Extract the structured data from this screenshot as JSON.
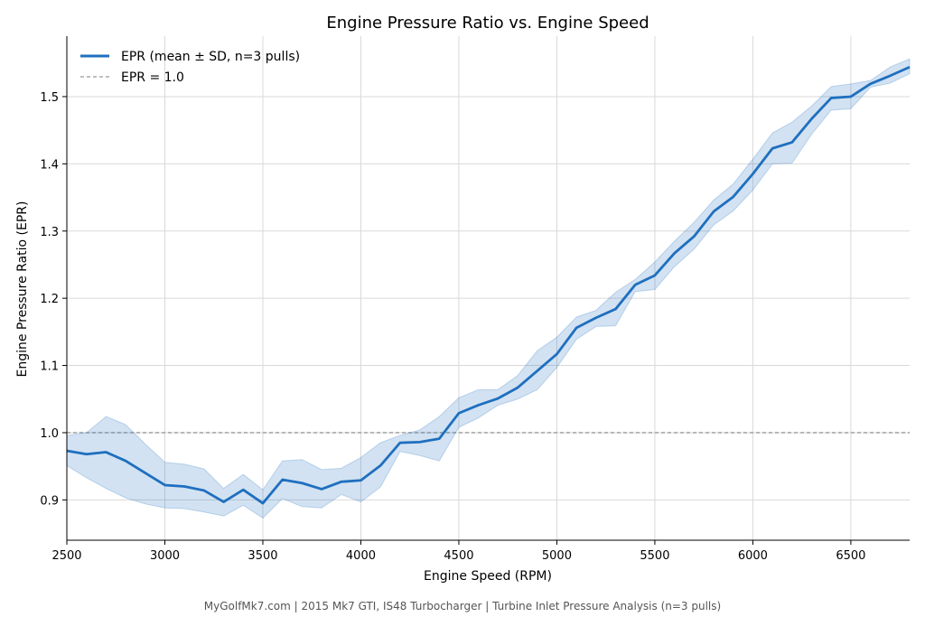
{
  "chart_data": {
    "type": "line",
    "title": "Engine Pressure Ratio vs. Engine Speed",
    "xlabel": "Engine Speed (RPM)",
    "ylabel": "Engine Pressure Ratio (EPR)",
    "xlim": [
      2500,
      6800
    ],
    "ylim": [
      0.84,
      1.59
    ],
    "xticks": [
      2500,
      3000,
      3500,
      4000,
      4500,
      5000,
      5500,
      6000,
      6500
    ],
    "yticks": [
      0.9,
      1.0,
      1.1,
      1.2,
      1.3,
      1.4,
      1.5
    ],
    "grid": true,
    "legend_position": "top-left",
    "series": [
      {
        "name": "EPR (mean ± SD, n=3 pulls)",
        "color": "#1f6fbf",
        "band_color": "#1f6fbf",
        "x": [
          2500,
          2600,
          2700,
          2800,
          2900,
          3000,
          3100,
          3200,
          3300,
          3400,
          3500,
          3600,
          3700,
          3800,
          3900,
          4000,
          4100,
          4200,
          4300,
          4400,
          4500,
          4600,
          4700,
          4800,
          4900,
          5000,
          5100,
          5200,
          5300,
          5400,
          5500,
          5600,
          5700,
          5800,
          5900,
          6000,
          6100,
          6200,
          6300,
          6400,
          6500,
          6600,
          6700,
          6800
        ],
        "y": [
          0.973,
          0.968,
          0.971,
          0.958,
          0.94,
          0.922,
          0.92,
          0.914,
          0.897,
          0.915,
          0.895,
          0.93,
          0.925,
          0.916,
          0.927,
          0.929,
          0.951,
          0.985,
          0.986,
          0.991,
          1.029,
          1.041,
          1.051,
          1.067,
          1.092,
          1.117,
          1.156,
          1.171,
          1.184,
          1.22,
          1.234,
          1.267,
          1.292,
          1.329,
          1.351,
          1.385,
          1.423,
          1.432,
          1.467,
          1.498,
          1.5,
          1.519,
          1.531,
          1.544
        ],
        "lower": [
          0.951,
          0.933,
          0.917,
          0.903,
          0.894,
          0.888,
          0.887,
          0.882,
          0.876,
          0.892,
          0.873,
          0.902,
          0.89,
          0.888,
          0.908,
          0.897,
          0.919,
          0.972,
          0.966,
          0.958,
          1.008,
          1.022,
          1.041,
          1.05,
          1.064,
          1.097,
          1.139,
          1.158,
          1.159,
          1.21,
          1.213,
          1.247,
          1.273,
          1.309,
          1.33,
          1.361,
          1.4,
          1.401,
          1.444,
          1.48,
          1.482,
          1.514,
          1.52,
          1.534
        ],
        "upper": [
          0.996,
          1.0,
          1.024,
          1.012,
          0.983,
          0.956,
          0.953,
          0.946,
          0.917,
          0.938,
          0.915,
          0.958,
          0.96,
          0.945,
          0.947,
          0.963,
          0.985,
          0.996,
          1.004,
          1.024,
          1.052,
          1.064,
          1.064,
          1.085,
          1.122,
          1.142,
          1.172,
          1.182,
          1.209,
          1.228,
          1.254,
          1.285,
          1.313,
          1.346,
          1.37,
          1.407,
          1.446,
          1.462,
          1.486,
          1.515,
          1.519,
          1.524,
          1.544,
          1.556
        ]
      }
    ],
    "reference_line": {
      "label": "EPR = 1.0",
      "y": 1.0,
      "color": "#999999"
    }
  },
  "footer": "MyGolfMk7.com | 2015 Mk7 GTI, IS48 Turbocharger | Turbine Inlet Pressure Analysis (n=3 pulls)"
}
